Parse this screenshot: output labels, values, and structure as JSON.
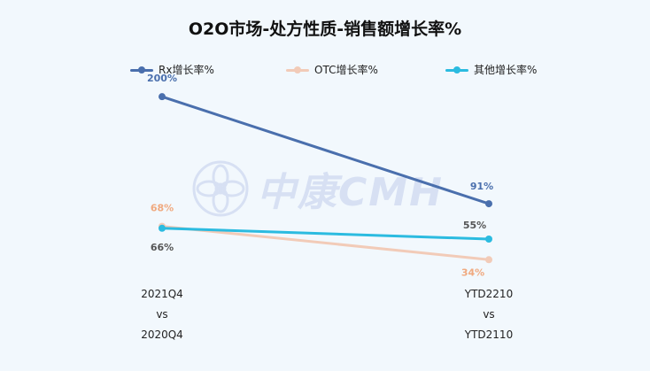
{
  "chart_data": {
    "type": "line",
    "title": "O2O市场-处方性质-销售额增长率%",
    "categories": [
      [
        "2021Q4",
        "vs",
        "2020Q4"
      ],
      [
        "YTD2210",
        "vs",
        "YTD2110"
      ]
    ],
    "ylim": [
      0,
      220
    ],
    "grid": false,
    "legend_position": "top",
    "series": [
      {
        "name": "Rx增长率%",
        "values": [
          200,
          91
        ],
        "labels": [
          "200%",
          "91%"
        ],
        "color": "#4a6fad",
        "label_color": "#4a6fad"
      },
      {
        "name": "OTC增长率%",
        "values": [
          68,
          34
        ],
        "labels": [
          "68%",
          "34%"
        ],
        "color": "#f2cbb8",
        "label_color": "#f0a97f"
      },
      {
        "name": "其他增长率%",
        "values": [
          66,
          55
        ],
        "labels": [
          "66%",
          "55%"
        ],
        "color": "#2bbbe0",
        "label_color": "#555555"
      }
    ]
  },
  "watermark": {
    "text": "中康CMH"
  }
}
